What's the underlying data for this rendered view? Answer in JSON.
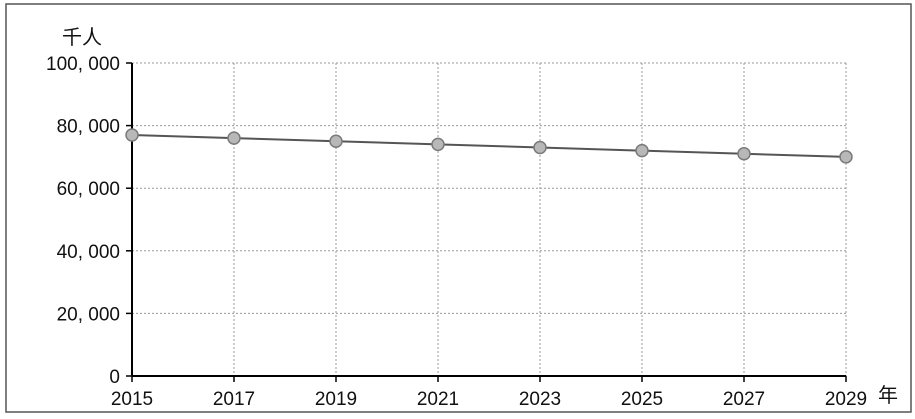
{
  "chart_data": {
    "type": "line",
    "title": "",
    "ylabel": "千人",
    "xlabel": "年",
    "x": [
      2015,
      2017,
      2019,
      2021,
      2023,
      2025,
      2027,
      2029
    ],
    "x_tick_labels": [
      "2015",
      "2017",
      "2019",
      "2021",
      "2023",
      "2025",
      "2027",
      "2029"
    ],
    "series": [
      {
        "values": [
          77000,
          76000,
          75000,
          74000,
          73000,
          72000,
          71000,
          70000
        ]
      }
    ],
    "ylim": [
      0,
      100000
    ],
    "y_ticks": [
      0,
      20000,
      40000,
      60000,
      80000,
      100000
    ],
    "y_tick_labels": [
      "0",
      "20, 000",
      "40, 000",
      "60, 000",
      "80, 000",
      "100, 000"
    ],
    "grid": "on",
    "legend": "none",
    "colors": {
      "line": "#555555",
      "marker_fill": "#b8b8b8",
      "marker_stroke": "#7a7a7a",
      "grid": "#9a9a9a",
      "axis": "#000000",
      "frame": "#555555"
    }
  }
}
